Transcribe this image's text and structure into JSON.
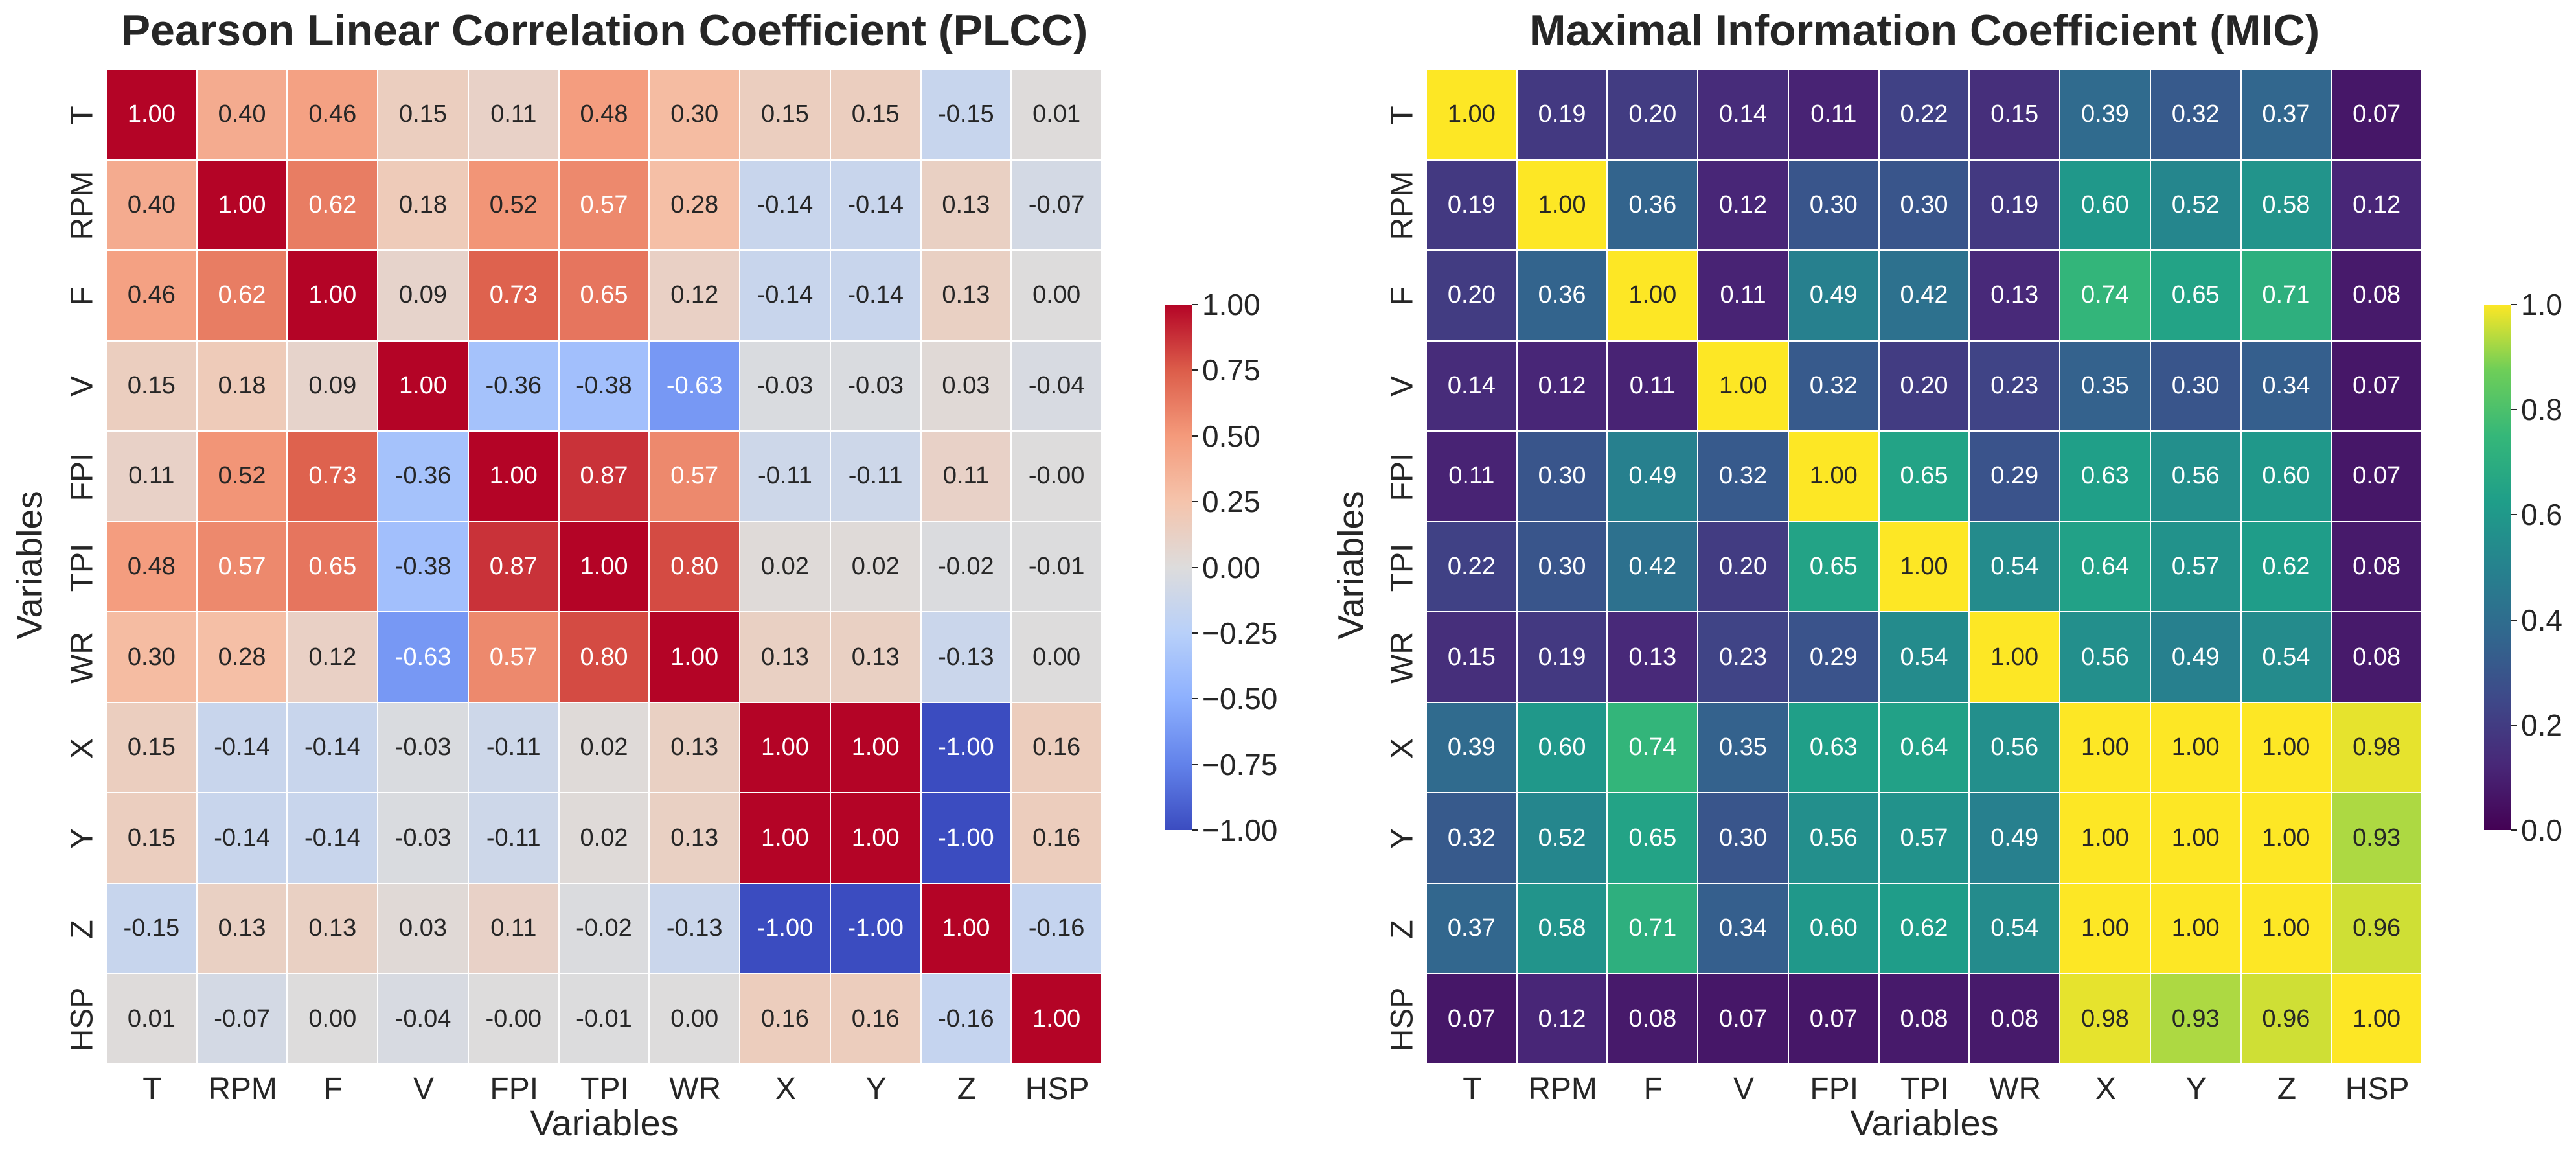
{
  "chart_data": [
    {
      "type": "heatmap",
      "title": "Pearson Linear Correlation Coefficient (PLCC)",
      "xlabel": "Variables",
      "ylabel": "Variables",
      "colormap": "coolwarm",
      "vmin": -1,
      "vmax": 1,
      "colorbar_ticks": [
        "1.00",
        "0.75",
        "0.50",
        "0.25",
        "0.00",
        "−0.25",
        "−0.50",
        "−0.75",
        "−1.00"
      ],
      "labels": [
        "T",
        "RPM",
        "F",
        "V",
        "FPI",
        "TPI",
        "WR",
        "X",
        "Y",
        "Z",
        "HSP"
      ],
      "values": [
        [
          "1.00",
          "0.40",
          "0.46",
          "0.15",
          "0.11",
          "0.48",
          "0.30",
          "0.15",
          "0.15",
          "-0.15",
          "0.01"
        ],
        [
          "0.40",
          "1.00",
          "0.62",
          "0.18",
          "0.52",
          "0.57",
          "0.28",
          "-0.14",
          "-0.14",
          "0.13",
          "-0.07"
        ],
        [
          "0.46",
          "0.62",
          "1.00",
          "0.09",
          "0.73",
          "0.65",
          "0.12",
          "-0.14",
          "-0.14",
          "0.13",
          "0.00"
        ],
        [
          "0.15",
          "0.18",
          "0.09",
          "1.00",
          "-0.36",
          "-0.38",
          "-0.63",
          "-0.03",
          "-0.03",
          "0.03",
          "-0.04"
        ],
        [
          "0.11",
          "0.52",
          "0.73",
          "-0.36",
          "1.00",
          "0.87",
          "0.57",
          "-0.11",
          "-0.11",
          "0.11",
          "-0.00"
        ],
        [
          "0.48",
          "0.57",
          "0.65",
          "-0.38",
          "0.87",
          "1.00",
          "0.80",
          "0.02",
          "0.02",
          "-0.02",
          "-0.01"
        ],
        [
          "0.30",
          "0.28",
          "0.12",
          "-0.63",
          "0.57",
          "0.80",
          "1.00",
          "0.13",
          "0.13",
          "-0.13",
          "0.00"
        ],
        [
          "0.15",
          "-0.14",
          "-0.14",
          "-0.03",
          "-0.11",
          "0.02",
          "0.13",
          "1.00",
          "1.00",
          "-1.00",
          "0.16"
        ],
        [
          "0.15",
          "-0.14",
          "-0.14",
          "-0.03",
          "-0.11",
          "0.02",
          "0.13",
          "1.00",
          "1.00",
          "-1.00",
          "0.16"
        ],
        [
          "-0.15",
          "0.13",
          "0.13",
          "0.03",
          "0.11",
          "-0.02",
          "-0.13",
          "-1.00",
          "-1.00",
          "1.00",
          "-0.16"
        ],
        [
          "0.01",
          "-0.07",
          "0.00",
          "-0.04",
          "-0.00",
          "-0.01",
          "0.00",
          "0.16",
          "0.16",
          "-0.16",
          "1.00"
        ]
      ]
    },
    {
      "type": "heatmap",
      "title": "Maximal Information Coefficient (MIC)",
      "xlabel": "Variables",
      "ylabel": "Variables",
      "colormap": "viridis",
      "vmin": 0,
      "vmax": 1,
      "colorbar_ticks": [
        "1.0",
        "0.8",
        "0.6",
        "0.4",
        "0.2",
        "0.0"
      ],
      "labels": [
        "T",
        "RPM",
        "F",
        "V",
        "FPI",
        "TPI",
        "WR",
        "X",
        "Y",
        "Z",
        "HSP"
      ],
      "values": [
        [
          "1.00",
          "0.19",
          "0.20",
          "0.14",
          "0.11",
          "0.22",
          "0.15",
          "0.39",
          "0.32",
          "0.37",
          "0.07"
        ],
        [
          "0.19",
          "1.00",
          "0.36",
          "0.12",
          "0.30",
          "0.30",
          "0.19",
          "0.60",
          "0.52",
          "0.58",
          "0.12"
        ],
        [
          "0.20",
          "0.36",
          "1.00",
          "0.11",
          "0.49",
          "0.42",
          "0.13",
          "0.74",
          "0.65",
          "0.71",
          "0.08"
        ],
        [
          "0.14",
          "0.12",
          "0.11",
          "1.00",
          "0.32",
          "0.20",
          "0.23",
          "0.35",
          "0.30",
          "0.34",
          "0.07"
        ],
        [
          "0.11",
          "0.30",
          "0.49",
          "0.32",
          "1.00",
          "0.65",
          "0.29",
          "0.63",
          "0.56",
          "0.60",
          "0.07"
        ],
        [
          "0.22",
          "0.30",
          "0.42",
          "0.20",
          "0.65",
          "1.00",
          "0.54",
          "0.64",
          "0.57",
          "0.62",
          "0.08"
        ],
        [
          "0.15",
          "0.19",
          "0.13",
          "0.23",
          "0.29",
          "0.54",
          "1.00",
          "0.56",
          "0.49",
          "0.54",
          "0.08"
        ],
        [
          "0.39",
          "0.60",
          "0.74",
          "0.35",
          "0.63",
          "0.64",
          "0.56",
          "1.00",
          "1.00",
          "1.00",
          "0.98"
        ],
        [
          "0.32",
          "0.52",
          "0.65",
          "0.30",
          "0.56",
          "0.57",
          "0.49",
          "1.00",
          "1.00",
          "1.00",
          "0.93"
        ],
        [
          "0.37",
          "0.58",
          "0.71",
          "0.34",
          "0.60",
          "0.62",
          "0.54",
          "1.00",
          "1.00",
          "1.00",
          "0.96"
        ],
        [
          "0.07",
          "0.12",
          "0.08",
          "0.07",
          "0.07",
          "0.08",
          "0.08",
          "0.98",
          "0.93",
          "0.96",
          "1.00"
        ]
      ]
    }
  ]
}
